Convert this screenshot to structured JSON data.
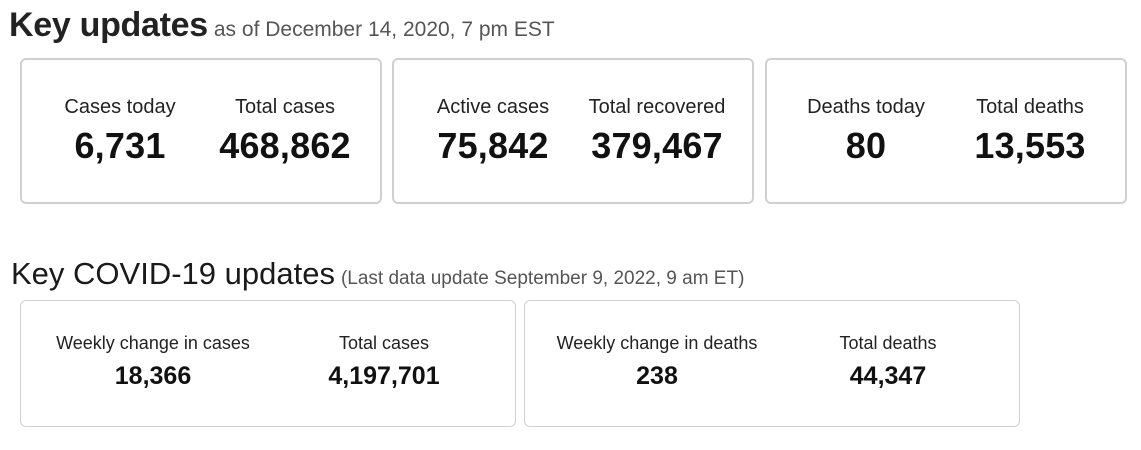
{
  "key_updates": {
    "title": "Key updates",
    "subtitle": "as of December 14, 2020, 7 pm EST",
    "cards": [
      {
        "stats": [
          {
            "label": "Cases today",
            "value": "6,731"
          },
          {
            "label": "Total cases",
            "value": "468,862"
          }
        ]
      },
      {
        "stats": [
          {
            "label": "Active cases",
            "value": "75,842"
          },
          {
            "label": "Total recovered",
            "value": "379,467"
          }
        ]
      },
      {
        "stats": [
          {
            "label": "Deaths today",
            "value": "80"
          },
          {
            "label": "Total deaths",
            "value": "13,553"
          }
        ]
      }
    ]
  },
  "covid_updates": {
    "title": "Key COVID-19 updates",
    "subtitle": "(Last data update September 9, 2022, 9 am ET)",
    "cards": [
      {
        "stats": [
          {
            "label": "Weekly change in cases",
            "value": "18,366"
          },
          {
            "label": "Total cases",
            "value": "4,197,701"
          }
        ]
      },
      {
        "stats": [
          {
            "label": "Weekly change in deaths",
            "value": "238"
          },
          {
            "label": "Total deaths",
            "value": "44,347"
          }
        ]
      }
    ]
  }
}
